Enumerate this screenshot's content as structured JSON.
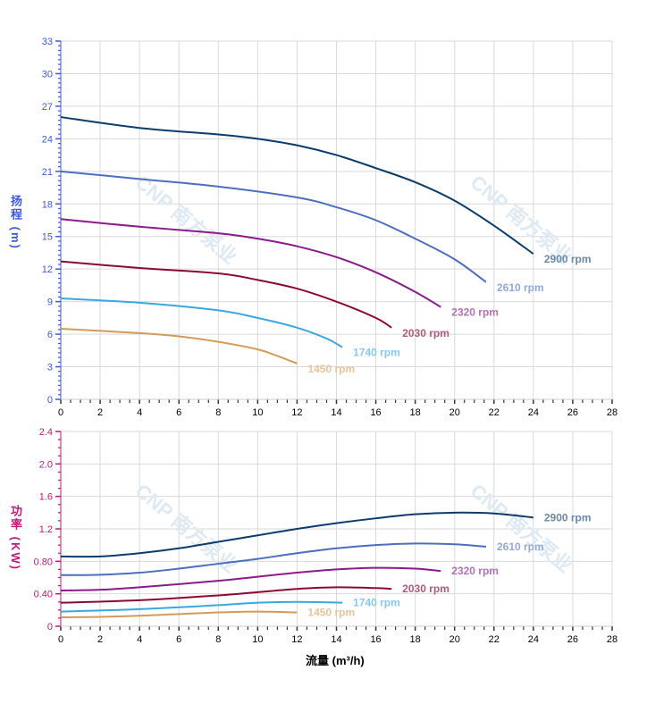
{
  "chart_data": [
    {
      "type": "line",
      "title": "",
      "ylabel": "扬程 (m)",
      "xlabel": "",
      "xlim": [
        0,
        28
      ],
      "ylim": [
        0,
        33
      ],
      "xticks": [
        "0",
        "2",
        "4",
        "6",
        "8",
        "10",
        "12",
        "14",
        "16",
        "18",
        "20",
        "22",
        "24",
        "26",
        "28"
      ],
      "yticks": [
        "0",
        "3",
        "6",
        "9",
        "12",
        "15",
        "18",
        "21",
        "24",
        "27",
        "30",
        "33"
      ],
      "grid": true,
      "series": [
        {
          "name": "2900 rpm",
          "color": "#0b3c6b",
          "label_color": "#6a88a8",
          "x": [
            0,
            4,
            8,
            10,
            12,
            14,
            16,
            18,
            20,
            22,
            24
          ],
          "y": [
            26,
            25,
            24.4,
            24,
            23.4,
            22.5,
            21.3,
            20,
            18.3,
            16,
            13.4
          ]
        },
        {
          "name": "2610 rpm",
          "color": "#4a6fbf",
          "label_color": "#93a9d8",
          "x": [
            0,
            4,
            8,
            12,
            14,
            16,
            18,
            20,
            21.6
          ],
          "y": [
            21,
            20.3,
            19.6,
            18.6,
            17.7,
            16.5,
            14.8,
            12.9,
            10.8
          ]
        },
        {
          "name": "2320 rpm",
          "color": "#8b1a8b",
          "label_color": "#b470b4",
          "x": [
            0,
            4,
            8,
            10,
            12,
            14,
            16,
            18,
            19.3
          ],
          "y": [
            16.6,
            15.9,
            15.3,
            14.8,
            14.1,
            13.1,
            11.7,
            9.9,
            8.5
          ]
        },
        {
          "name": "2030 rpm",
          "color": "#8b0a35",
          "label_color": "#b35a78",
          "x": [
            0,
            4,
            8,
            10,
            12,
            14,
            16,
            16.8
          ],
          "y": [
            12.7,
            12.1,
            11.6,
            11,
            10.2,
            9,
            7.5,
            6.6
          ]
        },
        {
          "name": "1740 rpm",
          "color": "#3aa8e0",
          "label_color": "#86c9ef",
          "x": [
            0,
            4,
            8,
            10,
            12,
            13.5,
            14.3
          ],
          "y": [
            9.3,
            8.9,
            8.2,
            7.5,
            6.6,
            5.6,
            4.8
          ]
        },
        {
          "name": "1450 rpm",
          "color": "#d49a5a",
          "label_color": "#e8c497",
          "x": [
            0,
            4,
            6,
            8,
            10,
            11,
            12
          ],
          "y": [
            6.5,
            6.1,
            5.8,
            5.3,
            4.6,
            4.0,
            3.3
          ]
        }
      ]
    },
    {
      "type": "line",
      "title": "",
      "ylabel": "功率 (KW)",
      "xlabel": "流量 (m³/h)",
      "xlim": [
        0,
        28
      ],
      "ylim": [
        0,
        2.4
      ],
      "xticks": [
        "0",
        "2",
        "4",
        "6",
        "8",
        "10",
        "12",
        "14",
        "16",
        "18",
        "20",
        "22",
        "24",
        "26",
        "28"
      ],
      "yticks": [
        "0",
        "0.40",
        "0.80",
        "1.2",
        "1.6",
        "2.0",
        "2.4"
      ],
      "grid": true,
      "series": [
        {
          "name": "2900 rpm",
          "color": "#0b3c6b",
          "label_color": "#6a88a8",
          "x": [
            0,
            2,
            4,
            6,
            8,
            10,
            12,
            14,
            16,
            18,
            20,
            22,
            24
          ],
          "y": [
            0.86,
            0.86,
            0.9,
            0.96,
            1.04,
            1.12,
            1.2,
            1.27,
            1.33,
            1.38,
            1.4,
            1.39,
            1.34
          ]
        },
        {
          "name": "2610 rpm",
          "color": "#4a6fbf",
          "label_color": "#93a9d8",
          "x": [
            0,
            2,
            4,
            6,
            8,
            10,
            12,
            14,
            16,
            18,
            20,
            21.6
          ],
          "y": [
            0.63,
            0.635,
            0.66,
            0.71,
            0.77,
            0.83,
            0.9,
            0.96,
            1.0,
            1.02,
            1.01,
            0.98
          ]
        },
        {
          "name": "2320 rpm",
          "color": "#8b1a8b",
          "label_color": "#b470b4",
          "x": [
            0,
            2,
            4,
            8,
            10,
            12,
            14,
            16,
            18,
            19.3
          ],
          "y": [
            0.44,
            0.45,
            0.48,
            0.56,
            0.61,
            0.66,
            0.7,
            0.72,
            0.71,
            0.68
          ]
        },
        {
          "name": "2030 rpm",
          "color": "#8b0a35",
          "label_color": "#b35a78",
          "x": [
            0,
            4,
            8,
            10,
            12,
            14,
            16,
            16.8
          ],
          "y": [
            0.29,
            0.32,
            0.38,
            0.42,
            0.46,
            0.48,
            0.47,
            0.46
          ]
        },
        {
          "name": "1740 rpm",
          "color": "#3aa8e0",
          "label_color": "#86c9ef",
          "x": [
            0,
            4,
            8,
            10,
            12,
            14.3
          ],
          "y": [
            0.18,
            0.21,
            0.26,
            0.29,
            0.3,
            0.29
          ]
        },
        {
          "name": "1450 rpm",
          "color": "#d49a5a",
          "label_color": "#e8c497",
          "x": [
            0,
            2,
            4,
            8,
            10,
            12
          ],
          "y": [
            0.11,
            0.115,
            0.13,
            0.17,
            0.18,
            0.17
          ]
        }
      ]
    }
  ],
  "watermark": "CNP 南方泵业",
  "colors": {
    "head_axis": "#3b5bdb",
    "power_axis": "#c2187a",
    "grid": "#d9d9d9"
  }
}
